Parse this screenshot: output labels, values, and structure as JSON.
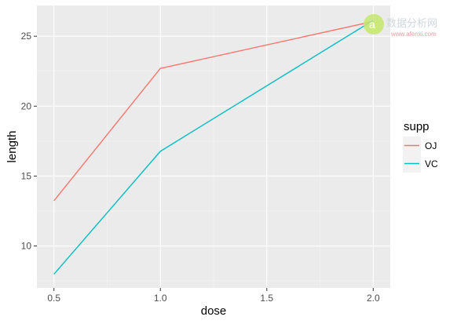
{
  "chart_data": {
    "type": "line",
    "x": [
      0.5,
      1.0,
      2.0
    ],
    "series": [
      {
        "name": "OJ",
        "values": [
          13.23,
          22.7,
          26.06
        ],
        "color": "#f8766d"
      },
      {
        "name": "VC",
        "values": [
          7.98,
          16.77,
          26.14
        ],
        "color": "#00bfc4"
      }
    ],
    "xlabel": "dose",
    "ylabel": "length",
    "xlim": [
      0.42,
      2.08
    ],
    "ylim": [
      7.0,
      27.2
    ],
    "x_ticks": [
      0.5,
      1.0,
      1.5,
      2.0
    ],
    "x_tick_labels": [
      "0.5",
      "1.0",
      "1.5",
      "2.0"
    ],
    "y_ticks": [
      10,
      15,
      20,
      25
    ],
    "y_tick_labels": [
      "10",
      "15",
      "20",
      "25"
    ],
    "grid": true,
    "panel_color": "#ebebeb",
    "legend": {
      "title": "supp",
      "placement": "right"
    }
  },
  "watermark": {
    "text": "数据分析网",
    "subtext": "www.afenxi.com",
    "icon": "a-logo-icon"
  }
}
